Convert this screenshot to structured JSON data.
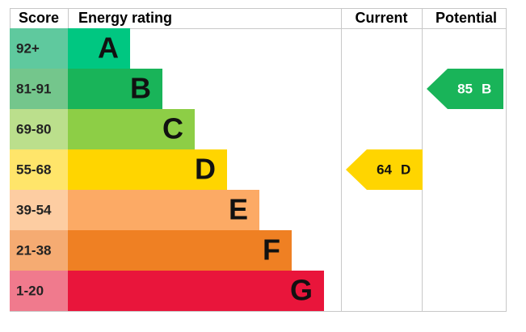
{
  "chart_data": {
    "type": "epc",
    "headers": [
      "Score",
      "Energy rating",
      "Current",
      "Potential"
    ],
    "bands": [
      {
        "score": "92+",
        "letter": "A",
        "color": "#00c781",
        "score_color": "#5fc99e"
      },
      {
        "score": "81-91",
        "letter": "B",
        "color": "#19b459",
        "score_color": "#74c68c"
      },
      {
        "score": "69-80",
        "letter": "C",
        "color": "#8dce46",
        "score_color": "#bbdf8c"
      },
      {
        "score": "55-68",
        "letter": "D",
        "color": "#ffd500",
        "score_color": "#ffe56a"
      },
      {
        "score": "39-54",
        "letter": "E",
        "color": "#fcaa65",
        "score_color": "#fdcda2"
      },
      {
        "score": "21-38",
        "letter": "F",
        "color": "#ef8023",
        "score_color": "#f5ab72"
      },
      {
        "score": "1-20",
        "letter": "G",
        "color": "#e9153b",
        "score_color": "#f07a8d"
      }
    ],
    "current": {
      "value": 64,
      "letter": "D"
    },
    "potential": {
      "value": 85,
      "letter": "B"
    }
  }
}
